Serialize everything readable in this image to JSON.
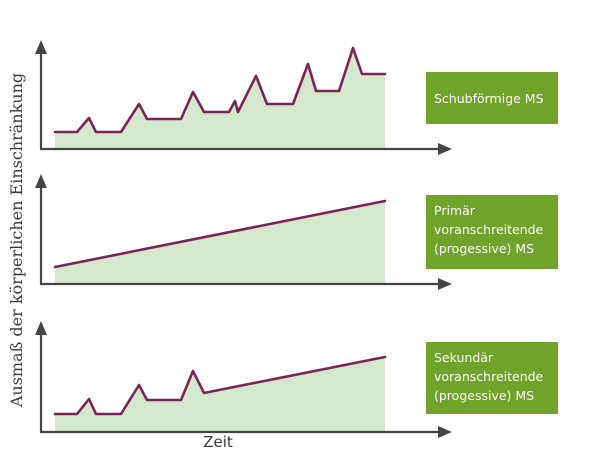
{
  "y_axis_label": "Ausmaß der körperlichen Einschränkung",
  "x_axis_label": "Zeit",
  "colors": {
    "axis": "#454545",
    "area_fill": "#d4e8cd",
    "curve": "#7b2458",
    "label_box": "#6fa32a",
    "label_text": "#ffffff"
  },
  "panels": [
    {
      "id": "schubfoermig",
      "label_lines": [
        "Schubförmige MS"
      ]
    },
    {
      "id": "primaer",
      "label_lines": [
        "Primär",
        "voranschreitende",
        "(progessive) MS"
      ]
    },
    {
      "id": "sekundaer",
      "label_lines": [
        "Sekundär",
        "voranschreitende",
        "(progessive) MS"
      ]
    }
  ]
}
